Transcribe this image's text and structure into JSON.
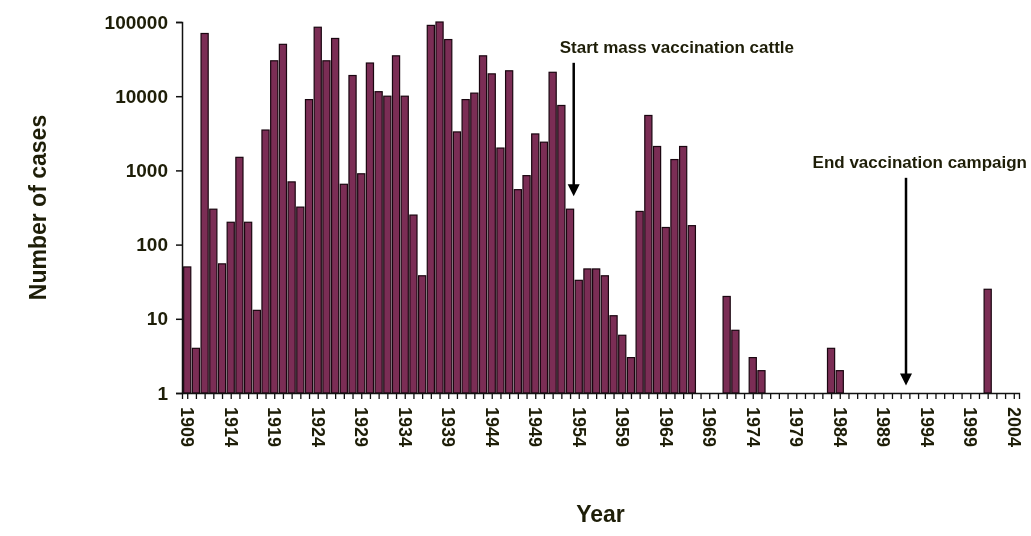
{
  "chart_data": {
    "type": "bar",
    "xlabel": "Year",
    "ylabel": "Number of cases",
    "log": "y",
    "grid": false,
    "color": "#7b2d55",
    "x": [
      1909,
      1910,
      1911,
      1912,
      1913,
      1914,
      1915,
      1916,
      1917,
      1918,
      1919,
      1920,
      1921,
      1922,
      1923,
      1924,
      1925,
      1926,
      1927,
      1928,
      1929,
      1930,
      1931,
      1932,
      1933,
      1934,
      1935,
      1936,
      1937,
      1938,
      1939,
      1940,
      1941,
      1942,
      1943,
      1944,
      1945,
      1946,
      1947,
      1948,
      1949,
      1950,
      1951,
      1952,
      1953,
      1954,
      1955,
      1956,
      1957,
      1958,
      1959,
      1960,
      1961,
      1962,
      1963,
      1964,
      1965,
      1966,
      1967,
      1971,
      1972,
      1974,
      1975,
      1983,
      1984,
      2001
    ],
    "values": [
      50,
      4,
      70000,
      300,
      55,
      200,
      1500,
      200,
      13,
      3500,
      30000,
      50000,
      700,
      320,
      9000,
      85000,
      30000,
      60000,
      650,
      19000,
      900,
      28000,
      11500,
      10000,
      35000,
      10000,
      250,
      38,
      90000,
      100000,
      58000,
      3300,
      9000,
      11000,
      35000,
      20000,
      2000,
      22000,
      550,
      850,
      3100,
      2400,
      21000,
      7500,
      300,
      33,
      47,
      47,
      38,
      11,
      6,
      3,
      280,
      5500,
      2100,
      170,
      1400,
      2100,
      180,
      20,
      7,
      3,
      2,
      4,
      2,
      25
    ],
    "xlim": [
      1908.4,
      2004.6
    ],
    "xticks": [
      1909,
      {
        "value": 1910,
        "label": null
      },
      {
        "value": 1911,
        "label": null
      },
      {
        "value": 1912,
        "label": null
      },
      {
        "value": 1913,
        "label": null
      },
      1914,
      {
        "value": 1915,
        "label": null
      },
      {
        "value": 1916,
        "label": null
      },
      {
        "value": 1917,
        "label": null
      },
      {
        "value": 1918,
        "label": null
      },
      1919,
      {
        "value": 1920,
        "label": null
      },
      {
        "value": 1921,
        "label": null
      },
      {
        "value": 1922,
        "label": null
      },
      {
        "value": 1923,
        "label": null
      },
      1924,
      {
        "value": 1925,
        "label": null
      },
      {
        "value": 1926,
        "label": null
      },
      {
        "value": 1927,
        "label": null
      },
      {
        "value": 1928,
        "label": null
      },
      1929,
      {
        "value": 1930,
        "label": null
      },
      {
        "value": 1931,
        "label": null
      },
      {
        "value": 1932,
        "label": null
      },
      {
        "value": 1933,
        "label": null
      },
      1934,
      {
        "value": 1935,
        "label": null
      },
      {
        "value": 1936,
        "label": null
      },
      {
        "value": 1937,
        "label": null
      },
      {
        "value": 1938,
        "label": null
      },
      1939,
      {
        "value": 1940,
        "label": null
      },
      {
        "value": 1941,
        "label": null
      },
      {
        "value": 1942,
        "label": null
      },
      {
        "value": 1943,
        "label": null
      },
      1944,
      {
        "value": 1945,
        "label": null
      },
      {
        "value": 1946,
        "label": null
      },
      {
        "value": 1947,
        "label": null
      },
      {
        "value": 1948,
        "label": null
      },
      1949,
      {
        "value": 1950,
        "label": null
      },
      {
        "value": 1951,
        "label": null
      },
      {
        "value": 1952,
        "label": null
      },
      {
        "value": 1953,
        "label": null
      },
      1954,
      {
        "value": 1955,
        "label": null
      },
      {
        "value": 1956,
        "label": null
      },
      {
        "value": 1957,
        "label": null
      },
      {
        "value": 1958,
        "label": null
      },
      1959,
      {
        "value": 1960,
        "label": null
      },
      {
        "value": 1961,
        "label": null
      },
      {
        "value": 1962,
        "label": null
      },
      {
        "value": 1963,
        "label": null
      },
      1964,
      {
        "value": 1965,
        "label": null
      },
      {
        "value": 1966,
        "label": null
      },
      {
        "value": 1967,
        "label": null
      },
      {
        "value": 1968,
        "label": null
      },
      1969,
      {
        "value": 1970,
        "label": null
      },
      {
        "value": 1971,
        "label": null
      },
      {
        "value": 1972,
        "label": null
      },
      {
        "value": 1973,
        "label": null
      },
      1974,
      {
        "value": 1975,
        "label": null
      },
      {
        "value": 1976,
        "label": null
      },
      {
        "value": 1977,
        "label": null
      },
      {
        "value": 1978,
        "label": null
      },
      1979,
      {
        "value": 1980,
        "label": null
      },
      {
        "value": 1981,
        "label": null
      },
      {
        "value": 1982,
        "label": null
      },
      {
        "value": 1983,
        "label": null
      },
      1984,
      {
        "value": 1985,
        "label": null
      },
      {
        "value": 1986,
        "label": null
      },
      {
        "value": 1987,
        "label": null
      },
      {
        "value": 1988,
        "label": null
      },
      1989,
      {
        "value": 1990,
        "label": null
      },
      {
        "value": 1991,
        "label": null
      },
      {
        "value": 1992,
        "label": null
      },
      {
        "value": 1993,
        "label": null
      },
      1994,
      {
        "value": 1995,
        "label": null
      },
      {
        "value": 1996,
        "label": null
      },
      {
        "value": 1997,
        "label": null
      },
      {
        "value": 1998,
        "label": null
      },
      1999,
      {
        "value": 2000,
        "label": null
      },
      {
        "value": 2001,
        "label": null
      },
      {
        "value": 2002,
        "label": null
      },
      {
        "value": 2003,
        "label": null
      },
      2004
    ],
    "ylim": [
      1,
      100000
    ],
    "yticks": [
      1,
      10,
      100,
      1000,
      10000,
      100000
    ],
    "annotations": [
      "Start mass vaccination cattle",
      "End vaccination campaign"
    ]
  }
}
